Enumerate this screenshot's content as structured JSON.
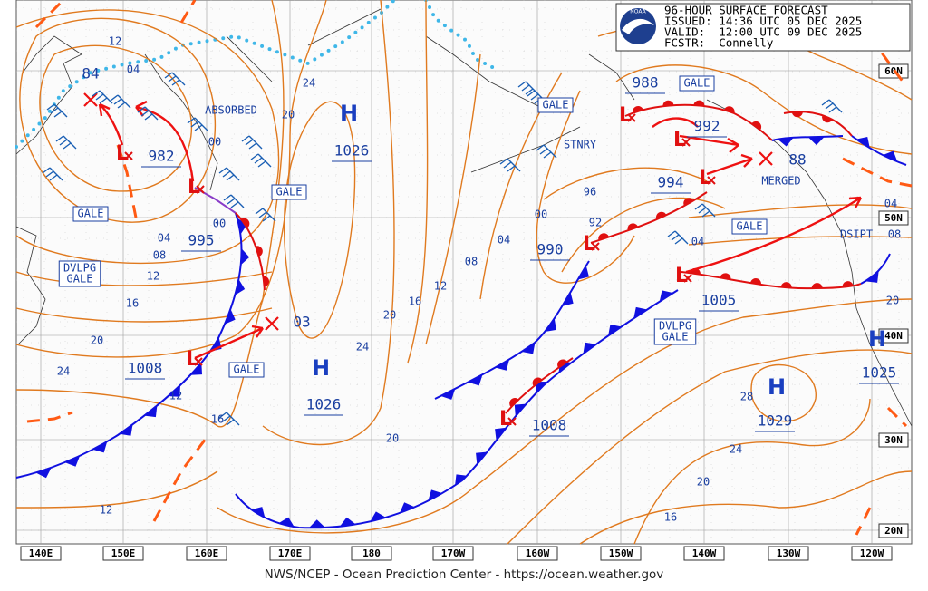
{
  "header": {
    "title": "96-HOUR SURFACE FORECAST",
    "issued": "ISSUED: 14:36 UTC 05 DEC 2025",
    "valid": "VALID:  12:00 UTC 09 DEC 2025",
    "forecaster": "FCSTR:  Connelly",
    "logo": "NOAA"
  },
  "footer": "NWS/NCEP - Ocean Prediction Center - https://ocean.weather.gov",
  "longitude_labels": [
    "140E",
    "150E",
    "160E",
    "170E",
    "180",
    "170W",
    "160W",
    "150W",
    "140W",
    "130W",
    "120W"
  ],
  "latitude_labels": [
    "60N",
    "50N",
    "40N",
    "30N",
    "20N"
  ],
  "pressure_systems": [
    {
      "symbol": "H",
      "pressure": "1026"
    },
    {
      "symbol": "H",
      "pressure": "1026"
    },
    {
      "symbol": "H",
      "pressure": "1029"
    },
    {
      "symbol": "H",
      "pressure": "1025"
    },
    {
      "symbol": "L",
      "pressure": "982"
    },
    {
      "symbol": "L",
      "pressure": "995"
    },
    {
      "symbol": "L",
      "pressure": "1008"
    },
    {
      "symbol": "L",
      "pressure": "990"
    },
    {
      "symbol": "L",
      "pressure": "1008"
    },
    {
      "symbol": "L",
      "pressure": "1005"
    },
    {
      "symbol": "L",
      "pressure": "988"
    },
    {
      "symbol": "L",
      "pressure": "992"
    },
    {
      "symbol": "L",
      "pressure": "994"
    }
  ],
  "annotations": [
    [
      "ABSORBED"
    ],
    [
      "GALE"
    ],
    [
      "GALE"
    ],
    [
      "DVLPG",
      "GALE"
    ],
    [
      "GALE"
    ],
    [
      "GALE"
    ],
    [
      "STNRY"
    ],
    [
      "GALE"
    ],
    [
      "MERGED"
    ],
    [
      "GALE"
    ],
    [
      "DSIPT"
    ],
    [
      "DVLPG",
      "GALE"
    ]
  ],
  "isobar_labels": [
    "84",
    "88",
    "03",
    "12",
    "04",
    "00",
    "00",
    "04",
    "08",
    "12",
    "16",
    "20",
    "24",
    "12",
    "16",
    "24",
    "20",
    "20",
    "24",
    "16",
    "12",
    "08",
    "04",
    "00",
    "96",
    "92",
    "04",
    "04",
    "08",
    "20",
    "28",
    "24",
    "20",
    "16",
    "20",
    "12"
  ]
}
